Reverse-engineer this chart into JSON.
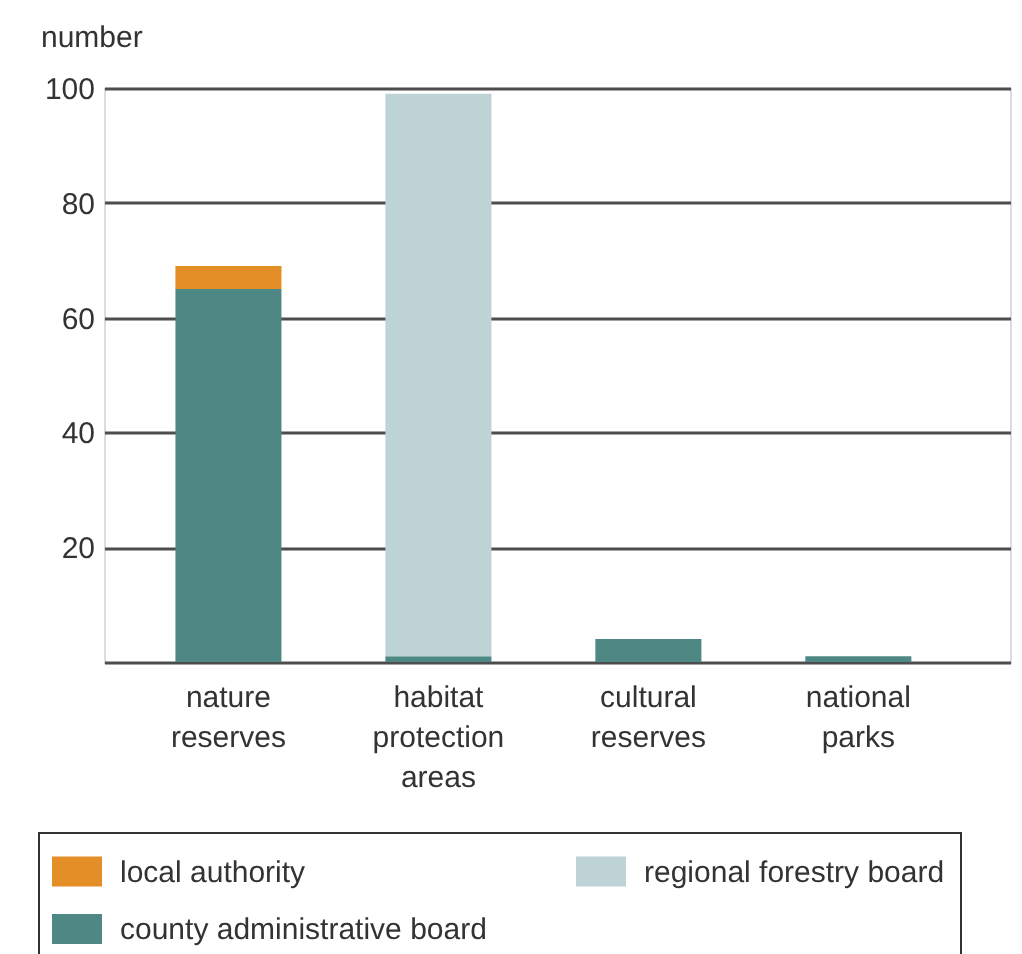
{
  "chart_data": {
    "type": "bar",
    "ylabel": "number",
    "categories": [
      "nature reserves",
      "habitat protection areas",
      "cultural reserves",
      "national parks"
    ],
    "series": [
      {
        "name": "county administrative board",
        "color": "#4e8884",
        "values": [
          65,
          1,
          4,
          1
        ]
      },
      {
        "name": "local authority",
        "color": "#e38e27",
        "values": [
          4,
          null,
          null,
          null
        ]
      },
      {
        "name": "regional forestry board",
        "color": "#bdd3d5",
        "values": [
          null,
          98,
          null,
          null
        ]
      }
    ],
    "stacked": true,
    "ylim": [
      0,
      100
    ],
    "yticks": [
      {
        "value": 0,
        "label": null
      },
      20,
      40,
      60,
      80,
      100
    ],
    "grid": "y",
    "legend": "bottom"
  }
}
